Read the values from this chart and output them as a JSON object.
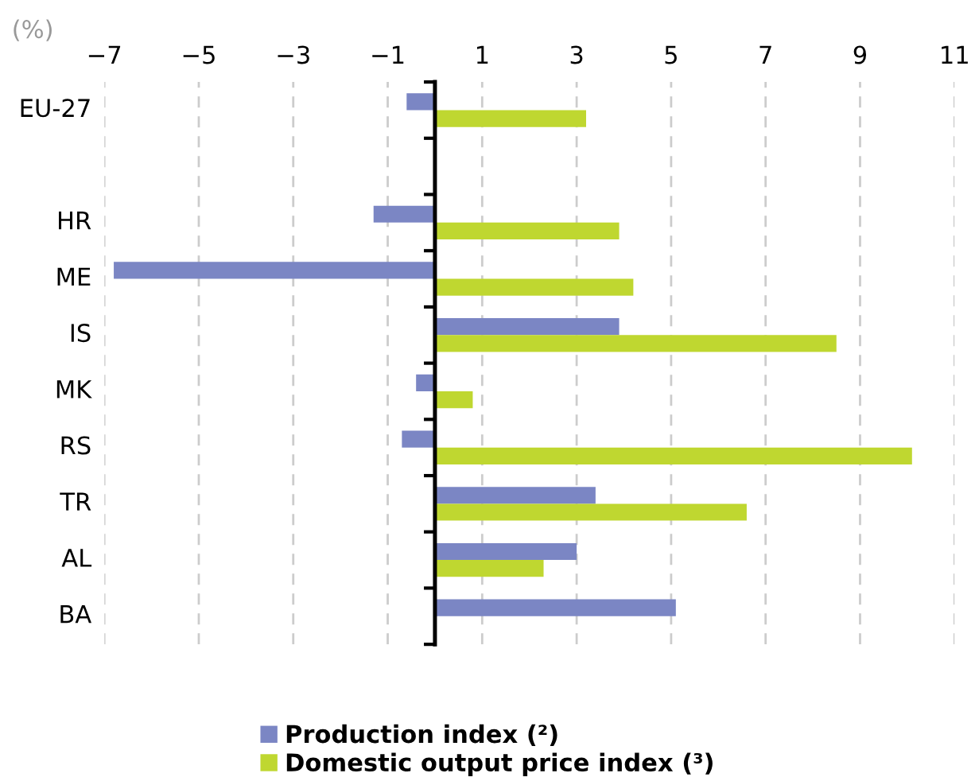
{
  "chart_data": {
    "type": "bar",
    "orientation": "horizontal",
    "title": "(%)",
    "categories": [
      "EU-27",
      null,
      "HR",
      "ME",
      "IS",
      "MK",
      "RS",
      "TR",
      "AL",
      "BA"
    ],
    "series": [
      {
        "name": "Production index (²)",
        "color": "#7b86c4",
        "values": [
          -0.6,
          null,
          -1.3,
          -6.8,
          3.9,
          -0.4,
          -0.7,
          3.4,
          3.0,
          5.1
        ]
      },
      {
        "name": "Domestic output price index (³)",
        "color": "#bfd730",
        "values": [
          3.2,
          null,
          3.9,
          4.2,
          8.5,
          0.8,
          10.1,
          6.6,
          2.3,
          null
        ]
      }
    ],
    "xlim": [
      -7,
      11
    ],
    "xticks": [
      {
        "value": -7,
        "label": "−7"
      },
      {
        "value": -5,
        "label": "−5"
      },
      {
        "value": -3,
        "label": "−3"
      },
      {
        "value": -1,
        "label": "−1"
      },
      1,
      3,
      5,
      7,
      9,
      11
    ],
    "grid": "x",
    "legend": "bottom"
  }
}
